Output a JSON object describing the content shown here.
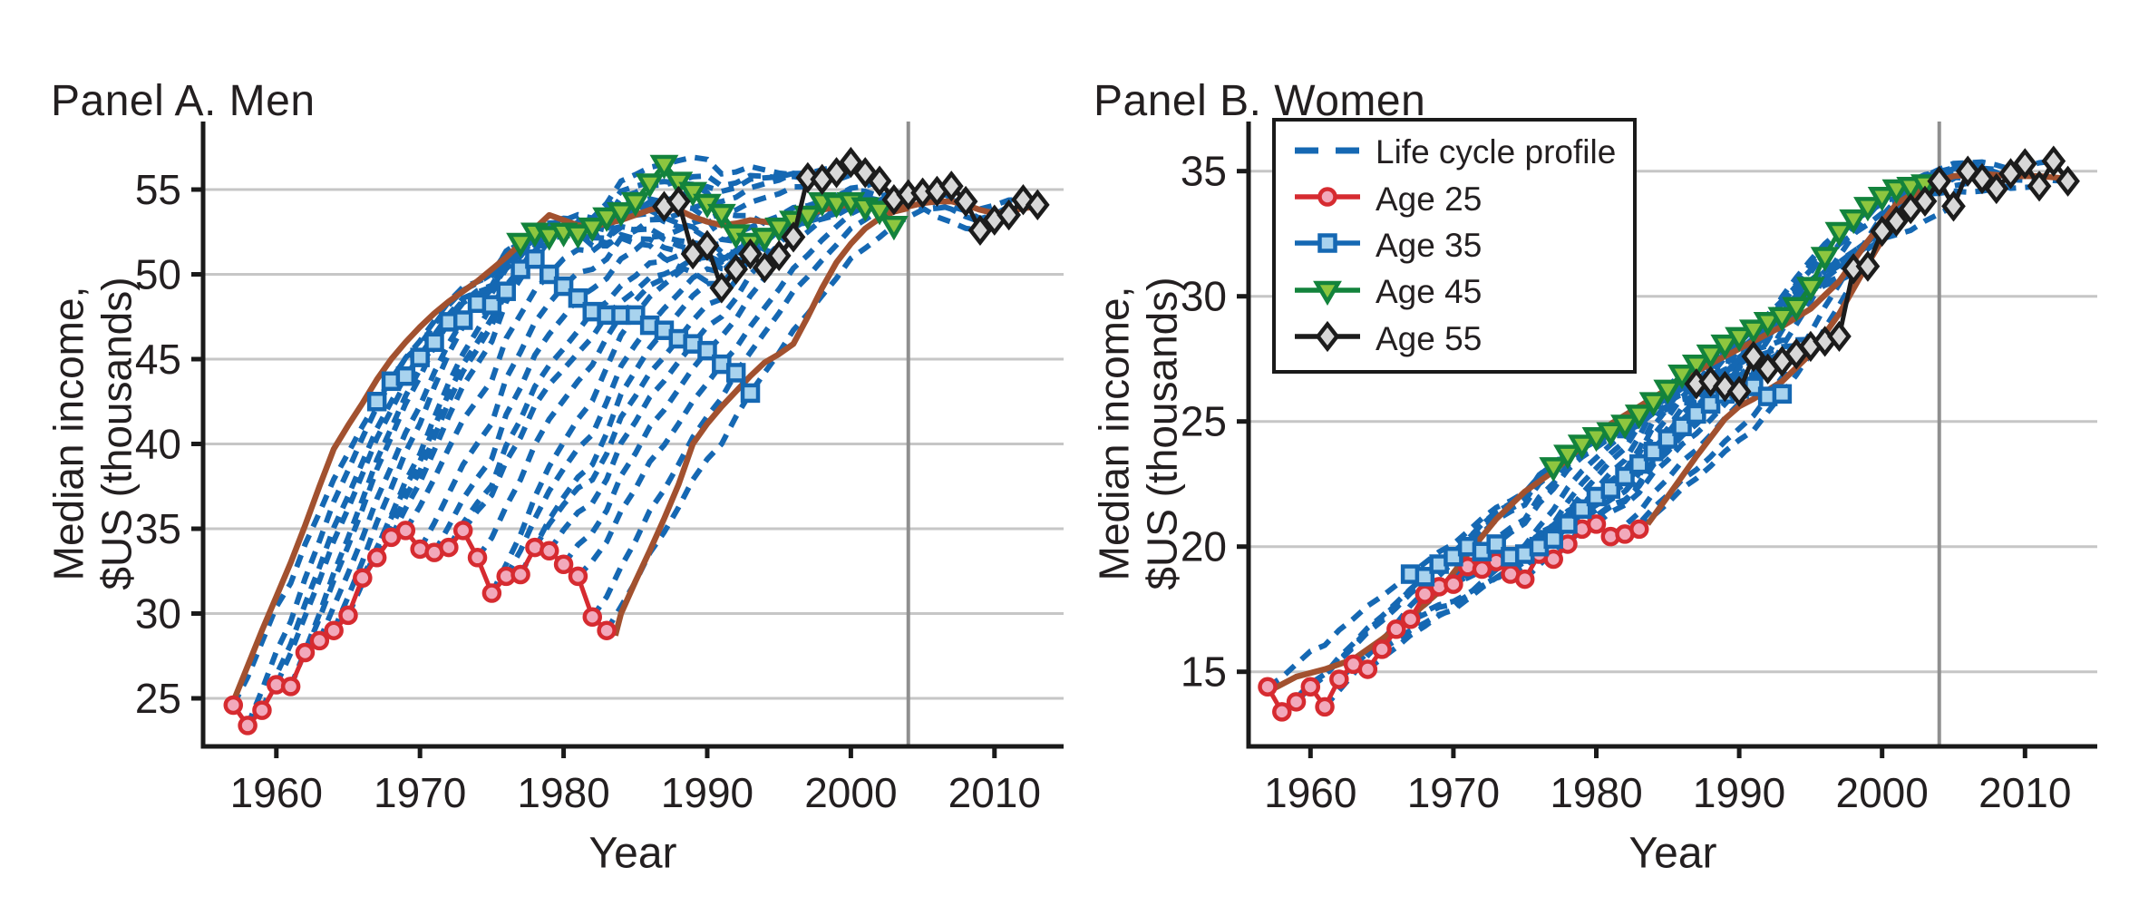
{
  "chart_data": {
    "type": "line",
    "figure_kind": "two-panel cohort life-cycle income profiles",
    "legend": {
      "position": "top-left of Panel B",
      "items": [
        {
          "label": "Life cycle profile",
          "style": "dashed",
          "color_key": "blue"
        },
        {
          "label": "Age 25",
          "marker": "circle",
          "color_key": "red"
        },
        {
          "label": "Age 35",
          "marker": "square",
          "color_key": "blue"
        },
        {
          "label": "Age 45",
          "marker": "triangle-down",
          "color_key": "green"
        },
        {
          "label": "Age 55",
          "marker": "diamond",
          "color_key": "black"
        }
      ]
    },
    "colors": {
      "blue": "#1568b3",
      "blue_fill": "#a8d3ee",
      "red": "#d62b30",
      "red_fill": "#f2a9bb",
      "green": "#13833c",
      "green_fill": "#8dc63f",
      "black": "#1c1c1c",
      "diamond_fill": "#d8d8d8",
      "brown": "#a2512f",
      "grid": "#c6c6c6",
      "vline": "#8f8f8f",
      "axis": "#1a1a1a",
      "text": "#231f20"
    },
    "life_cycle_profiles": {
      "note": "One dashed line per cohort entering at age 25 each year 1957-1983; each line passes through that cohort's Age 25, Age 35 (+10 yr), Age 45 (+20 yr) and Age 55 (+30 yr) values.",
      "entry_year_first": 1957,
      "entry_year_last": 1983,
      "anchor_age_offsets": [
        0,
        10,
        20,
        30
      ],
      "macro_deviation": {
        "1958": -0.6,
        "1960": 0.2,
        "1961": -0.4,
        "1964": 0.2,
        "1967": 0.2,
        "1970": -0.4,
        "1971": -0.2,
        "1974": -0.5,
        "1975": -1.0,
        "1978": 0.5,
        "1979": 0.4,
        "1981": -0.4,
        "1982": -1.2,
        "1983": -0.9,
        "1986": 0.3,
        "1989": 0.2,
        "1991": -0.8,
        "1992": -0.5,
        "1996": 0.2,
        "2000": 0.3,
        "2002": -0.3,
        "2005": 0.2,
        "2008": -0.3,
        "2009": -0.8,
        "2010": -0.6
      }
    },
    "panels": [
      {
        "id": "A",
        "title": "Panel A. Men",
        "xlabel": "Year",
        "ylabel_line1": "Median income,",
        "ylabel_line2": "$US (thousands)",
        "xticks": [
          1960,
          1970,
          1980,
          1990,
          2000,
          2010
        ],
        "yticks": [
          25,
          30,
          35,
          40,
          45,
          50,
          55
        ],
        "vline_year": 2004,
        "wiggle_amp": 1.0,
        "series": [
          {
            "name": "Age 25",
            "marker": "circle",
            "start_year": 1957,
            "values": [
              24.6,
              23.4,
              24.3,
              25.8,
              25.7,
              27.7,
              28.4,
              29.0,
              29.9,
              32.1,
              33.3,
              34.5,
              34.9,
              33.8,
              33.6,
              33.9,
              34.9,
              33.3,
              31.2,
              32.2,
              32.3,
              33.9,
              33.7,
              32.9,
              32.2,
              29.8,
              29.0
            ]
          },
          {
            "name": "Age 35",
            "marker": "square",
            "start_year": 1967,
            "values": [
              42.5,
              43.7,
              44.0,
              45.1,
              46.0,
              47.2,
              47.3,
              48.3,
              48.2,
              49.0,
              50.3,
              50.9,
              50.0,
              49.3,
              48.6,
              47.8,
              47.6,
              47.6,
              47.6,
              47.0,
              46.7,
              46.2,
              45.9,
              45.5,
              44.7,
              44.2,
              43.0
            ]
          },
          {
            "name": "Age 45",
            "marker": "triangle-down",
            "start_year": 1977,
            "values": [
              51.9,
              52.5,
              52.3,
              52.5,
              52.4,
              52.8,
              53.4,
              53.7,
              54.3,
              55.4,
              56.5,
              55.5,
              54.9,
              54.2,
              53.6,
              52.4,
              51.9,
              52.2,
              52.8,
              53.2,
              53.5,
              54.3,
              54.2,
              54.3,
              54.0,
              53.8,
              52.9
            ]
          },
          {
            "name": "Age 55",
            "marker": "diamond",
            "start_year": 1987,
            "values": [
              54.0,
              54.3,
              51.2,
              51.7,
              49.2,
              50.3,
              51.2,
              50.4,
              51.1,
              52.2,
              55.7,
              55.6,
              56.0,
              56.6,
              56.0,
              55.5,
              54.4,
              54.7,
              54.8,
              54.9,
              55.2,
              54.3,
              52.6,
              53.2,
              53.5,
              54.4,
              54.1
            ]
          }
        ],
        "envelope_upper": [
          [
            1957,
            24.8
          ],
          [
            1958,
            26.9
          ],
          [
            1959,
            29.0
          ],
          [
            1960,
            31.0
          ],
          [
            1961,
            33.0
          ],
          [
            1962,
            35.2
          ],
          [
            1963,
            37.5
          ],
          [
            1964,
            39.7
          ],
          [
            1965,
            41.1
          ],
          [
            1966,
            42.4
          ],
          [
            1967,
            43.8
          ],
          [
            1968,
            45.0
          ],
          [
            1969,
            46.0
          ],
          [
            1970,
            46.9
          ],
          [
            1971,
            47.7
          ],
          [
            1972,
            48.4
          ],
          [
            1973,
            49.0
          ],
          [
            1974,
            49.6
          ],
          [
            1975,
            50.3
          ],
          [
            1976,
            51.0
          ],
          [
            1977,
            51.8
          ],
          [
            1978,
            52.7
          ],
          [
            1979,
            53.5
          ],
          [
            1980,
            53.2
          ],
          [
            1981,
            52.9
          ],
          [
            1982,
            52.8
          ],
          [
            1983,
            53.0
          ],
          [
            1984,
            53.2
          ],
          [
            1985,
            53.5
          ],
          [
            1986,
            53.8
          ],
          [
            1987,
            54.0
          ],
          [
            1988,
            53.8
          ],
          [
            1989,
            53.4
          ],
          [
            1990,
            53.1
          ],
          [
            1991,
            52.9
          ],
          [
            1992,
            53.0
          ],
          [
            1993,
            53.2
          ],
          [
            1994,
            53.1
          ],
          [
            1995,
            53.0
          ],
          [
            1996,
            53.2
          ],
          [
            1997,
            53.5
          ],
          [
            1998,
            53.8
          ],
          [
            1999,
            54.0
          ],
          [
            2000,
            54.1
          ],
          [
            2001,
            54.0
          ],
          [
            2002,
            53.9
          ],
          [
            2003,
            53.9
          ],
          [
            2004,
            54.0
          ],
          [
            2005,
            54.2
          ],
          [
            2006,
            54.3
          ],
          [
            2007,
            54.3
          ],
          [
            2008,
            54.1
          ],
          [
            2009,
            53.8
          ],
          [
            2010,
            53.6
          ],
          [
            2011,
            53.7
          ],
          [
            2012,
            53.9
          ],
          [
            2013,
            54.0
          ]
        ],
        "envelope_lower": [
          [
            1983.6,
            28.7
          ],
          [
            1984,
            30.0
          ],
          [
            1985,
            31.9
          ],
          [
            1986,
            33.7
          ],
          [
            1987,
            35.6
          ],
          [
            1988,
            37.6
          ],
          [
            1989,
            40.0
          ],
          [
            1990,
            41.2
          ],
          [
            1991,
            42.2
          ],
          [
            1992,
            43.1
          ],
          [
            1993,
            44.0
          ],
          [
            1994,
            44.8
          ],
          [
            1995,
            45.3
          ],
          [
            1996,
            45.9
          ],
          [
            1997,
            47.5
          ],
          [
            1998,
            49.2
          ],
          [
            1999,
            50.7
          ],
          [
            2000,
            51.8
          ],
          [
            2001,
            52.7
          ],
          [
            2002,
            53.3
          ],
          [
            2003,
            53.7
          ],
          [
            2004,
            53.9
          ]
        ]
      },
      {
        "id": "B",
        "title": "Panel B. Women",
        "xlabel": "Year",
        "ylabel_line1": "Median income,",
        "ylabel_line2": "$US (thousands)",
        "xticks": [
          1960,
          1970,
          1980,
          1990,
          2000,
          2010
        ],
        "yticks": [
          15,
          20,
          25,
          30,
          35
        ],
        "vline_year": 2004,
        "wiggle_amp": 0.4,
        "series": [
          {
            "name": "Age 25",
            "marker": "circle",
            "start_year": 1957,
            "values": [
              14.4,
              13.4,
              13.8,
              14.4,
              13.6,
              14.7,
              15.3,
              15.1,
              15.9,
              16.7,
              17.1,
              18.1,
              18.4,
              18.5,
              19.2,
              19.1,
              19.4,
              18.9,
              18.7,
              19.7,
              19.5,
              20.1,
              20.7,
              20.9,
              20.4,
              20.5,
              20.7
            ]
          },
          {
            "name": "Age 35",
            "marker": "square",
            "start_year": 1967,
            "values": [
              18.9,
              18.8,
              19.3,
              19.6,
              20.0,
              19.8,
              20.1,
              19.6,
              19.7,
              20.0,
              20.3,
              20.9,
              21.5,
              22.0,
              22.3,
              22.8,
              23.3,
              23.8,
              24.3,
              24.8,
              25.3,
              25.7,
              26.1,
              26.3,
              26.4,
              26.0,
              26.1
            ]
          },
          {
            "name": "Age 45",
            "marker": "triangle-down",
            "start_year": 1977,
            "values": [
              23.2,
              23.7,
              24.1,
              24.4,
              24.6,
              24.9,
              25.3,
              25.8,
              26.3,
              26.9,
              27.3,
              27.7,
              28.1,
              28.4,
              28.7,
              29.0,
              29.2,
              29.6,
              30.4,
              31.6,
              32.6,
              33.1,
              33.6,
              34.0,
              34.3,
              34.4,
              34.5
            ]
          },
          {
            "name": "Age 55",
            "marker": "diamond",
            "start_year": 1987,
            "values": [
              26.5,
              26.6,
              26.4,
              26.2,
              27.6,
              27.1,
              27.4,
              27.7,
              28.0,
              28.2,
              28.4,
              31.1,
              31.2,
              32.6,
              33.0,
              33.5,
              33.8,
              34.6,
              33.6,
              35.0,
              34.7,
              34.3,
              34.9,
              35.3,
              34.4,
              35.4,
              34.6
            ]
          }
        ],
        "envelope_upper": [
          [
            1957,
            14.2
          ],
          [
            1959,
            14.8
          ],
          [
            1961,
            15.1
          ],
          [
            1963,
            15.5
          ],
          [
            1965,
            16.3
          ],
          [
            1967,
            17.2
          ],
          [
            1969,
            18.2
          ],
          [
            1971,
            19.7
          ],
          [
            1973,
            21.1
          ],
          [
            1975,
            22.2
          ],
          [
            1977,
            23.0
          ],
          [
            1979,
            24.0
          ],
          [
            1981,
            24.9
          ],
          [
            1983,
            25.6
          ],
          [
            1985,
            26.3
          ],
          [
            1987,
            27.0
          ],
          [
            1989,
            27.6
          ],
          [
            1991,
            28.2
          ],
          [
            1993,
            28.8
          ],
          [
            1995,
            29.5
          ],
          [
            1997,
            30.6
          ],
          [
            1999,
            32.2
          ],
          [
            2001,
            33.7
          ],
          [
            2003,
            34.4
          ],
          [
            2005,
            34.8
          ],
          [
            2007,
            34.9
          ],
          [
            2009,
            34.8
          ],
          [
            2011,
            34.8
          ],
          [
            2013,
            34.7
          ]
        ],
        "envelope_lower": [
          [
            1983.6,
            20.9
          ],
          [
            1985,
            22.0
          ],
          [
            1987,
            23.6
          ],
          [
            1989,
            25.1
          ],
          [
            1990,
            25.6
          ],
          [
            1991,
            25.9
          ],
          [
            1993,
            26.6
          ],
          [
            1995,
            27.7
          ],
          [
            1997,
            29.3
          ],
          [
            1999,
            31.3
          ],
          [
            2001,
            33.2
          ],
          [
            2003,
            34.3
          ],
          [
            2004,
            34.6
          ]
        ]
      }
    ]
  }
}
